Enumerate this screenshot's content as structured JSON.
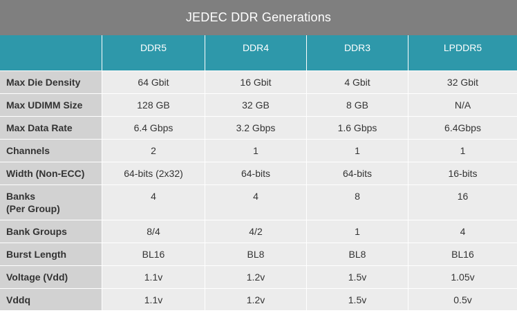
{
  "title": "JEDEC DDR Generations",
  "colors": {
    "title_bg": "#7f7f7f",
    "header_bg": "#2e98aa",
    "row_label_bg": "#d2d2d2",
    "cell_bg": "#ececec"
  },
  "columns": [
    "",
    "DDR5",
    "DDR4",
    "DDR3",
    "LPDDR5"
  ],
  "rows": [
    {
      "label": "Max Die Density",
      "values": [
        "64 Gbit",
        "16 Gbit",
        "4 Gbit",
        "32 Gbit"
      ]
    },
    {
      "label": "Max UDIMM Size",
      "values": [
        "128 GB",
        "32 GB",
        "8 GB",
        "N/A"
      ]
    },
    {
      "label": "Max Data Rate",
      "values": [
        "6.4 Gbps",
        "3.2 Gbps",
        "1.6 Gbps",
        "6.4Gbps"
      ]
    },
    {
      "label": "Channels",
      "values": [
        "2",
        "1",
        "1",
        "1"
      ]
    },
    {
      "label": "Width (Non-ECC)",
      "values": [
        "64-bits (2x32)",
        "64-bits",
        "64-bits",
        "16-bits"
      ]
    },
    {
      "label": "Banks",
      "sublabel": "(Per Group)",
      "values": [
        "4",
        "4",
        "8",
        "16"
      ]
    },
    {
      "label": "Bank Groups",
      "values": [
        "8/4",
        "4/2",
        "1",
        "4"
      ]
    },
    {
      "label": "Burst Length",
      "values": [
        "BL16",
        "BL8",
        "BL8",
        "BL16"
      ]
    },
    {
      "label": "Voltage (Vdd)",
      "values": [
        "1.1v",
        "1.2v",
        "1.5v",
        "1.05v"
      ]
    },
    {
      "label": "Vddq",
      "values": [
        "1.1v",
        "1.2v",
        "1.5v",
        "0.5v"
      ]
    }
  ]
}
